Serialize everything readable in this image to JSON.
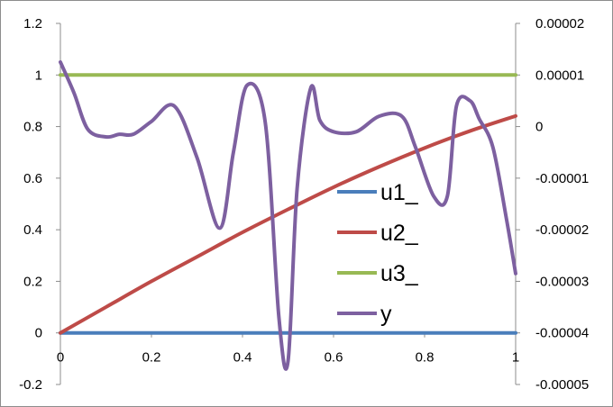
{
  "chart_data": {
    "type": "line",
    "title": "",
    "xlabel": "",
    "ylabel": "",
    "xlim": [
      0,
      1
    ],
    "ylim": [
      -0.2,
      1.2
    ],
    "y2lim": [
      -5e-05,
      2e-05
    ],
    "grid": "none",
    "legend_position": "center-right",
    "x_ticks": [
      "0",
      "0.2",
      "0.4",
      "0.6",
      "0.8",
      "1"
    ],
    "y_ticks": [
      "-0.2",
      "0",
      "0.2",
      "0.4",
      "0.6",
      "0.8",
      "1",
      "1.2"
    ],
    "y2_ticks": [
      "-0.00005",
      "-0.00004",
      "-0.00003",
      "-0.00002",
      "-0.00001",
      "0",
      "0.00001",
      "0.00002"
    ],
    "series": [
      {
        "name": "u1_",
        "axis": "primary",
        "color": "#4a7ebb",
        "x": [
          0,
          1
        ],
        "y": [
          0,
          0
        ]
      },
      {
        "name": "u2_",
        "axis": "primary",
        "color": "#be4b48",
        "x": [
          0,
          0.1,
          0.2,
          0.3,
          0.4,
          0.5,
          0.6,
          0.7,
          0.8,
          0.9,
          1.0
        ],
        "y": [
          0,
          0.1,
          0.2,
          0.295,
          0.39,
          0.479,
          0.565,
          0.644,
          0.717,
          0.783,
          0.841
        ]
      },
      {
        "name": "u3_",
        "axis": "primary",
        "color": "#98b954",
        "x": [
          0,
          0.5,
          1
        ],
        "y": [
          1.0,
          1.0,
          1.0
        ]
      },
      {
        "name": "y",
        "axis": "secondary",
        "color": "#7d60a0",
        "x": [
          0,
          0.03,
          0.06,
          0.1,
          0.13,
          0.16,
          0.2,
          0.25,
          0.3,
          0.35,
          0.38,
          0.41,
          0.45,
          0.48,
          0.5,
          0.52,
          0.55,
          0.57,
          0.6,
          0.65,
          0.7,
          0.75,
          0.78,
          0.82,
          0.85,
          0.87,
          0.9,
          0.92,
          0.95,
          0.98,
          1.0
        ],
        "y": [
          1.25e-05,
          6.5e-06,
          -5e-07,
          -2e-06,
          -1.5e-06,
          -1.5e-06,
          1e-06,
          4e-06,
          -6e-06,
          -1.97e-05,
          -5e-06,
          8e-06,
          8e-07,
          -3.7e-05,
          -4.55e-05,
          -1.2e-05,
          7.5e-06,
          1.2e-06,
          -1e-06,
          -1e-06,
          2e-06,
          2e-06,
          -4e-06,
          -1.35e-05,
          -1.35e-05,
          4e-06,
          5e-06,
          1.5e-06,
          -4e-06,
          -1.8e-05,
          -2.85e-05
        ]
      }
    ]
  }
}
